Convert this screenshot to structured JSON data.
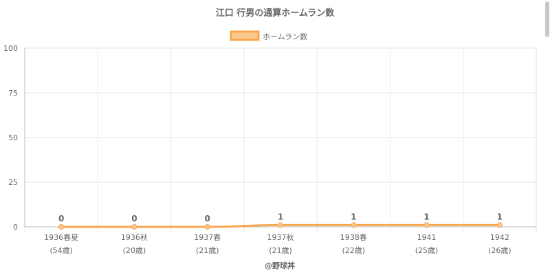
{
  "chart_data": {
    "type": "line",
    "title": "江口 行男の通算ホームラン数",
    "categories": [
      [
        "1936春夏",
        "(54歳)"
      ],
      [
        "1936秋",
        "(20歳)"
      ],
      [
        "1937春",
        "(21歳)"
      ],
      [
        "1937秋",
        "(21歳)"
      ],
      [
        "1938春",
        "(22歳)"
      ],
      [
        "1941",
        "(25歳)"
      ],
      [
        "1942",
        "(26歳)"
      ]
    ],
    "series": [
      {
        "name": "ホームラン数",
        "values": [
          0,
          0,
          0,
          1,
          1,
          1,
          1
        ]
      }
    ],
    "ylim": [
      0,
      100
    ],
    "yticks": [
      0,
      25,
      50,
      75,
      100
    ],
    "grid": true,
    "legend_position": "top",
    "data_labels": true,
    "colors": {
      "line": "#f8a64f",
      "fill": "#fbc88f",
      "grid": "#e6e6e6",
      "axis": "#bdbdbd"
    }
  },
  "credit": "@野球丼"
}
